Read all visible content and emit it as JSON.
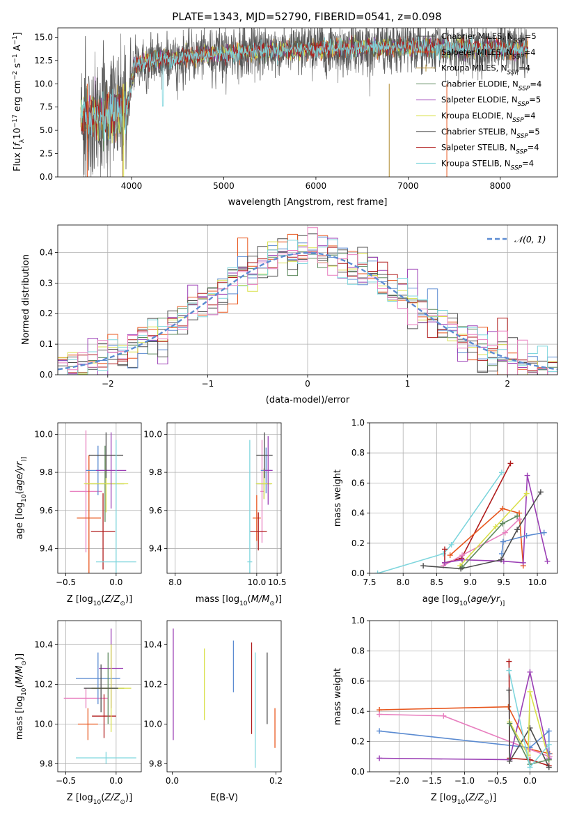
{
  "figure": {
    "title": "PLATE=1343, MJD=52790, FIBERID=0541, z=0.098"
  },
  "chart_data": [
    {
      "id": "spectrum",
      "type": "line",
      "xlabel": "wavelength [Angstrom, rest frame]",
      "ylabel": "Flux [f$_\\lambda$10$^{-17}$ erg cm$^{-2}$ s$^{-1}$ A$^{-1}$]",
      "ylabel_parts": [
        "Flux [",
        "f",
        "λ",
        "10",
        "−17",
        " erg cm",
        "−2",
        " s",
        "−1",
        " A",
        "−1",
        "]"
      ],
      "xlim": [
        3200,
        8620
      ],
      "ylim": [
        0,
        16
      ],
      "xticks": [
        4000,
        5000,
        6000,
        7000,
        8000
      ],
      "yticks": [
        0.0,
        2.5,
        5.0,
        7.5,
        10.0,
        12.5,
        15.0
      ],
      "grid": false,
      "legend_position": "upper-right",
      "x_data_start": 3450,
      "x_data_end": 8300,
      "series": [
        {
          "name": "Chabrier MILES, N$_{SSP}$=5",
          "label": "Chabrier MILES, N",
          "sub": "SSP",
          "suffix": "=5",
          "color": "#4d4d4d"
        },
        {
          "name": "Salpeter MILES, N$_{SSP}$=4",
          "label": "Salpeter MILES, N",
          "sub": "SSP",
          "suffix": "=4",
          "color": "#e8571e"
        },
        {
          "name": "Kroupa MILES, N$_{SSP}$=4",
          "label": "Kroupa MILES, N",
          "sub": "SSP",
          "suffix": "=4",
          "color": "#b08a2e"
        },
        {
          "name": "Chabrier ELODIE, N$_{SSP}$=4",
          "label": "Chabrier ELODIE, N",
          "sub": "SSP",
          "suffix": "=4",
          "color": "#5e8a5e"
        },
        {
          "name": "Salpeter ELODIE, N$_{SSP}$=5",
          "label": "Salpeter ELODIE, N",
          "sub": "SSP",
          "suffix": "=5",
          "color": "#9b3fb5"
        },
        {
          "name": "Kroupa ELODIE, N$_{SSP}$=4",
          "label": "Kroupa ELODIE, N",
          "sub": "SSP",
          "suffix": "=4",
          "color": "#d9e04a"
        },
        {
          "name": "Chabrier STELIB, N$_{SSP}$=5",
          "label": "Chabrier STELIB, N",
          "sub": "SSP",
          "suffix": "=5",
          "color": "#555555"
        },
        {
          "name": "Salpeter STELIB, N$_{SSP}$=4",
          "label": "Salpeter STELIB, N",
          "sub": "SSP",
          "suffix": "=4",
          "color": "#b01c1c"
        },
        {
          "name": "Kroupa STELIB, N$_{SSP}$=4",
          "label": "Kroupa STELIB, N",
          "sub": "SSP",
          "suffix": "=4",
          "color": "#7fd6dd"
        }
      ]
    },
    {
      "id": "residuals",
      "type": "histogram",
      "xlabel": "(data-model)/error",
      "ylabel": "Normed distribution",
      "xlim": [
        -2.5,
        2.5
      ],
      "ylim": [
        0,
        0.49
      ],
      "xticks": [
        -2,
        -1,
        0,
        1,
        2
      ],
      "yticks": [
        0.0,
        0.1,
        0.2,
        0.3,
        0.4
      ],
      "grid": true,
      "legend_position": "upper-right",
      "bin_width": 0.1,
      "reference_curve": {
        "name": "$\\mathcal{N}(0,1)$",
        "label": "𝒩(0, 1)",
        "mean": 0,
        "sigma": 1,
        "color": "#5b8bd1",
        "style": "dashed"
      },
      "histogram_colors": [
        "#4d4d4d",
        "#e8571e",
        "#5b8bd1",
        "#5e8a5e",
        "#9b3fb5",
        "#d9e04a",
        "#555555",
        "#b01c1c",
        "#7fd6dd",
        "#e87fbf"
      ]
    },
    {
      "id": "age-vs-Z",
      "type": "errorbar",
      "xlabel": "Z [log$_{10}$(Z/Z$_\\odot$)]",
      "xlabel_parts": [
        "Z [log",
        "10",
        "(",
        "Z/Z",
        "⊙",
        ")]"
      ],
      "ylabel": "age  [log$_{10}$(age/yr)]",
      "ylabel_parts": [
        "age  [log",
        "10",
        "(",
        "age/yr",
        ")]"
      ],
      "xlim": [
        -0.58,
        0.25
      ],
      "ylim": [
        9.27,
        10.06
      ],
      "xticks": [
        -0.5,
        0.0
      ],
      "yticks": [
        9.4,
        9.6,
        9.8,
        10.0
      ],
      "grid": true,
      "points": [
        {
          "x": -0.3,
          "y": 9.7,
          "xerr": 0.16,
          "yerr": 0.32,
          "color": "#e87fbf"
        },
        {
          "x": -0.27,
          "y": 9.56,
          "xerr": 0.12,
          "yerr": 0.33,
          "color": "#e8571e"
        },
        {
          "x": -0.18,
          "y": 9.81,
          "xerr": 0.12,
          "yerr": 0.13,
          "color": "#5b8bd1"
        },
        {
          "x": -0.11,
          "y": 9.74,
          "xerr": 0.19,
          "yerr": 0.2,
          "color": "#5e8a5e"
        },
        {
          "x": -0.1,
          "y": 9.74,
          "xerr": 0.22,
          "yerr": 0.15,
          "color": "#d9e04a"
        },
        {
          "x": -0.05,
          "y": 9.81,
          "xerr": 0.15,
          "yerr": 0.2,
          "color": "#9b3fb5"
        },
        {
          "x": -0.13,
          "y": 9.49,
          "xerr": 0.12,
          "yerr": 0.2,
          "color": "#b01c1c"
        },
        {
          "x": -0.1,
          "y": 9.89,
          "xerr": 0.17,
          "yerr": 0.12,
          "color": "#4d4d4d"
        },
        {
          "x": 0.0,
          "y": 9.33,
          "xerr": 0.2,
          "yerr": 0.64,
          "color": "#7fd6dd"
        }
      ]
    },
    {
      "id": "age-vs-mass",
      "type": "errorbar",
      "xlabel": "mass [log$_{10}$(M/M$_\\odot$)]",
      "xlabel_parts": [
        "mass [log",
        "10",
        "(",
        "M/M",
        "⊙",
        ")]"
      ],
      "xlim": [
        7.8,
        10.6
      ],
      "ylim": [
        9.27,
        10.06
      ],
      "xticks": [
        8.0,
        10.0,
        10.5
      ],
      "yticks": [
        9.4,
        9.6,
        9.8,
        10.0
      ],
      "grid": true,
      "points": [
        {
          "x": 10.0,
          "y": 9.56,
          "xerr": 0.1,
          "yerr": 0.12,
          "color": "#e8571e"
        },
        {
          "x": 10.13,
          "y": 9.7,
          "xerr": 0.04,
          "yerr": 0.27,
          "color": "#e87fbf"
        },
        {
          "x": 10.04,
          "y": 9.49,
          "xerr": 0.21,
          "yerr": 0.1,
          "color": "#b01c1c"
        },
        {
          "x": 10.18,
          "y": 9.74,
          "xerr": 0.17,
          "yerr": 0.08,
          "color": "#5e8a5e"
        },
        {
          "x": 10.23,
          "y": 9.81,
          "xerr": 0.13,
          "yerr": 0.12,
          "color": "#5b8bd1"
        },
        {
          "x": 10.18,
          "y": 9.74,
          "xerr": 0.2,
          "yerr": 0.08,
          "color": "#d9e04a"
        },
        {
          "x": 10.19,
          "y": 9.89,
          "xerr": 0.2,
          "yerr": 0.12,
          "color": "#4d4d4d"
        },
        {
          "x": 10.28,
          "y": 9.81,
          "xerr": 0.11,
          "yerr": 0.18,
          "color": "#9b3fb5"
        },
        {
          "x": 9.83,
          "y": 9.33,
          "xerr": 0.06,
          "yerr": 0.64,
          "color": "#7fd6dd"
        }
      ]
    },
    {
      "id": "weight-vs-age",
      "type": "line",
      "xlabel": "age  [log$_{10}$(age/yr)]",
      "xlabel_parts": [
        "age  [log",
        "10",
        "(",
        "age/yr",
        ")]"
      ],
      "ylabel": "mass weight",
      "xlim": [
        7.5,
        10.3
      ],
      "ylim": [
        0,
        1
      ],
      "xticks": [
        7.5,
        8.0,
        8.5,
        9.0,
        9.5,
        10.0
      ],
      "yticks": [
        0.0,
        0.2,
        0.4,
        0.6,
        0.8,
        1.0
      ],
      "grid": true,
      "series": [
        {
          "color": "#7fd6dd",
          "points": [
            [
              7.62,
              0.0
            ],
            [
              8.6,
              0.13
            ],
            [
              8.72,
              0.19
            ],
            [
              9.47,
              0.67
            ]
          ]
        },
        {
          "color": "#b01c1c",
          "points": [
            [
              8.62,
              0.16
            ],
            [
              8.62,
              0.07
            ],
            [
              8.87,
              0.1
            ],
            [
              9.6,
              0.73
            ]
          ]
        },
        {
          "color": "#e8571e",
          "points": [
            [
              8.7,
              0.12
            ],
            [
              9.48,
              0.43
            ],
            [
              9.73,
              0.4
            ],
            [
              9.79,
              0.05
            ]
          ]
        },
        {
          "color": "#e87fbf",
          "points": [
            [
              8.6,
              0.05
            ],
            [
              8.88,
              0.12
            ],
            [
              9.52,
              0.27
            ],
            [
              9.73,
              0.36
            ]
          ]
        },
        {
          "color": "#9b3fb5",
          "points": [
            [
              8.62,
              0.07
            ],
            [
              8.88,
              0.09
            ],
            [
              9.5,
              0.08
            ],
            [
              9.79,
              0.07
            ],
            [
              9.85,
              0.65
            ],
            [
              10.15,
              0.08
            ]
          ]
        },
        {
          "color": "#d9e04a",
          "points": [
            [
              8.85,
              0.05
            ],
            [
              9.38,
              0.31
            ],
            [
              9.84,
              0.53
            ]
          ]
        },
        {
          "color": "#5e8a5e",
          "points": [
            [
              8.88,
              0.04
            ],
            [
              9.48,
              0.33
            ],
            [
              9.7,
              0.38
            ]
          ]
        },
        {
          "color": "#5b8bd1",
          "points": [
            [
              9.47,
              0.13
            ],
            [
              9.49,
              0.21
            ],
            [
              9.84,
              0.25
            ],
            [
              10.1,
              0.27
            ]
          ]
        },
        {
          "color": "#4d4d4d",
          "points": [
            [
              8.3,
              0.05
            ],
            [
              8.86,
              0.03
            ],
            [
              9.46,
              0.09
            ],
            [
              9.7,
              0.29
            ],
            [
              10.05,
              0.54
            ]
          ]
        }
      ]
    },
    {
      "id": "mass-vs-Z",
      "type": "errorbar",
      "xlabel": "Z [log$_{10}$(Z/Z$_\\odot$)]",
      "xlabel_parts": [
        "Z [log",
        "10",
        "(",
        "Z/Z",
        "⊙",
        ")]"
      ],
      "ylabel": "mass [log$_{10}$(M/M$_\\odot$)]",
      "ylabel_parts": [
        "mass [log",
        "10",
        "(",
        "M/M",
        "⊙",
        ")]"
      ],
      "xlim": [
        -0.58,
        0.25
      ],
      "ylim": [
        9.76,
        10.52
      ],
      "xticks": [
        -0.5,
        0.0
      ],
      "yticks": [
        9.8,
        10.0,
        10.2,
        10.4
      ],
      "grid": true,
      "points": [
        {
          "x": -0.3,
          "y": 10.13,
          "xerr": 0.22,
          "yerr": 0.05,
          "color": "#e87fbf"
        },
        {
          "x": -0.28,
          "y": 10.0,
          "xerr": 0.1,
          "yerr": 0.08,
          "color": "#e8571e"
        },
        {
          "x": -0.18,
          "y": 10.23,
          "xerr": 0.22,
          "yerr": 0.13,
          "color": "#5b8bd1"
        },
        {
          "x": -0.05,
          "y": 10.28,
          "xerr": 0.12,
          "yerr": 0.2,
          "color": "#9b3fb5"
        },
        {
          "x": -0.12,
          "y": 10.04,
          "xerr": 0.12,
          "yerr": 0.11,
          "color": "#b01c1c"
        },
        {
          "x": -0.08,
          "y": 10.18,
          "xerr": 0.16,
          "yerr": 0.18,
          "color": "#5e8a5e"
        },
        {
          "x": -0.05,
          "y": 10.18,
          "xerr": 0.2,
          "yerr": 0.22,
          "color": "#d9e04a"
        },
        {
          "x": -0.15,
          "y": 10.18,
          "xerr": 0.17,
          "yerr": 0.12,
          "color": "#4d4d4d"
        },
        {
          "x": -0.1,
          "y": 9.83,
          "xerr": 0.3,
          "yerr": 0.03,
          "color": "#7fd6dd"
        }
      ]
    },
    {
      "id": "mass-vs-EBV",
      "type": "errorbar",
      "xlabel": "E(B-V)",
      "xlim": [
        -0.01,
        0.21
      ],
      "ylim": [
        9.76,
        10.52
      ],
      "xticks": [
        0.0,
        0.2
      ],
      "yticks": [
        9.8,
        10.0,
        10.2,
        10.4
      ],
      "grid": false,
      "points": [
        {
          "x": 0.002,
          "y": 10.2,
          "xerr": 0.0,
          "yerr": 0.28,
          "color": "#9b3fb5"
        },
        {
          "x": 0.062,
          "y": 10.2,
          "xerr": 0.0,
          "yerr": 0.18,
          "color": "#d9e04a"
        },
        {
          "x": 0.118,
          "y": 10.29,
          "xerr": 0.0,
          "yerr": 0.13,
          "color": "#5b8bd1"
        },
        {
          "x": 0.153,
          "y": 10.18,
          "xerr": 0.0,
          "yerr": 0.23,
          "color": "#b01c1c"
        },
        {
          "x": 0.16,
          "y": 10.07,
          "xerr": 0.0,
          "yerr": 0.29,
          "color": "#7fd6dd"
        },
        {
          "x": 0.183,
          "y": 10.18,
          "xerr": 0.0,
          "yerr": 0.18,
          "color": "#4d4d4d"
        },
        {
          "x": 0.198,
          "y": 9.98,
          "xerr": 0.0,
          "yerr": 0.1,
          "color": "#e8571e"
        }
      ]
    },
    {
      "id": "weight-vs-Z",
      "type": "line",
      "xlabel": "Z [log$_{10}$(Z/Z$_\\odot$)]",
      "xlabel_parts": [
        "Z [log",
        "10",
        "(",
        "Z/Z",
        "⊙",
        ")]"
      ],
      "ylabel": "mass weight",
      "xlim": [
        -2.45,
        0.42
      ],
      "ylim": [
        0,
        1
      ],
      "xticks": [
        -2.0,
        -1.5,
        -1.0,
        -0.5,
        0.0
      ],
      "yticks": [
        0.0,
        0.2,
        0.4,
        0.6,
        0.8,
        1.0
      ],
      "grid": true,
      "series": [
        {
          "color": "#e8571e",
          "points": [
            [
              -2.3,
              0.41
            ],
            [
              -0.33,
              0.43
            ],
            [
              0.0,
              0.15
            ],
            [
              0.3,
              0.12
            ]
          ]
        },
        {
          "color": "#e87fbf",
          "points": [
            [
              -2.3,
              0.38
            ],
            [
              -1.32,
              0.37
            ],
            [
              -0.01,
              0.15
            ],
            [
              0.3,
              0.1
            ]
          ]
        },
        {
          "color": "#5b8bd1",
          "points": [
            [
              -2.3,
              0.27
            ],
            [
              0.0,
              0.16
            ],
            [
              0.29,
              0.27
            ],
            [
              0.29,
              0.12
            ]
          ]
        },
        {
          "color": "#9b3fb5",
          "points": [
            [
              -2.3,
              0.09
            ],
            [
              -0.31,
              0.08
            ],
            [
              0.0,
              0.66
            ],
            [
              0.29,
              0.09
            ]
          ]
        },
        {
          "color": "#b01c1c",
          "points": [
            [
              -0.32,
              0.73
            ],
            [
              -0.31,
              0.09
            ],
            [
              0.0,
              0.08
            ],
            [
              0.29,
              0.04
            ]
          ]
        },
        {
          "color": "#4d4d4d",
          "points": [
            [
              -0.32,
              0.54
            ],
            [
              -0.31,
              0.07
            ],
            [
              0.0,
              0.29
            ],
            [
              0.29,
              0.03
            ]
          ]
        },
        {
          "color": "#d9e04a",
          "points": [
            [
              -0.31,
              0.33
            ],
            [
              -0.03,
              0.11
            ],
            [
              0.0,
              0.53
            ],
            [
              0.29,
              0.08
            ]
          ]
        },
        {
          "color": "#5e8a5e",
          "points": [
            [
              -0.31,
              0.32
            ],
            [
              0.0,
              0.05
            ],
            [
              0.29,
              0.08
            ]
          ]
        },
        {
          "color": "#7fd6dd",
          "points": [
            [
              -0.32,
              0.67
            ],
            [
              0.0,
              0.03
            ],
            [
              0.29,
              0.18
            ]
          ]
        }
      ]
    }
  ]
}
